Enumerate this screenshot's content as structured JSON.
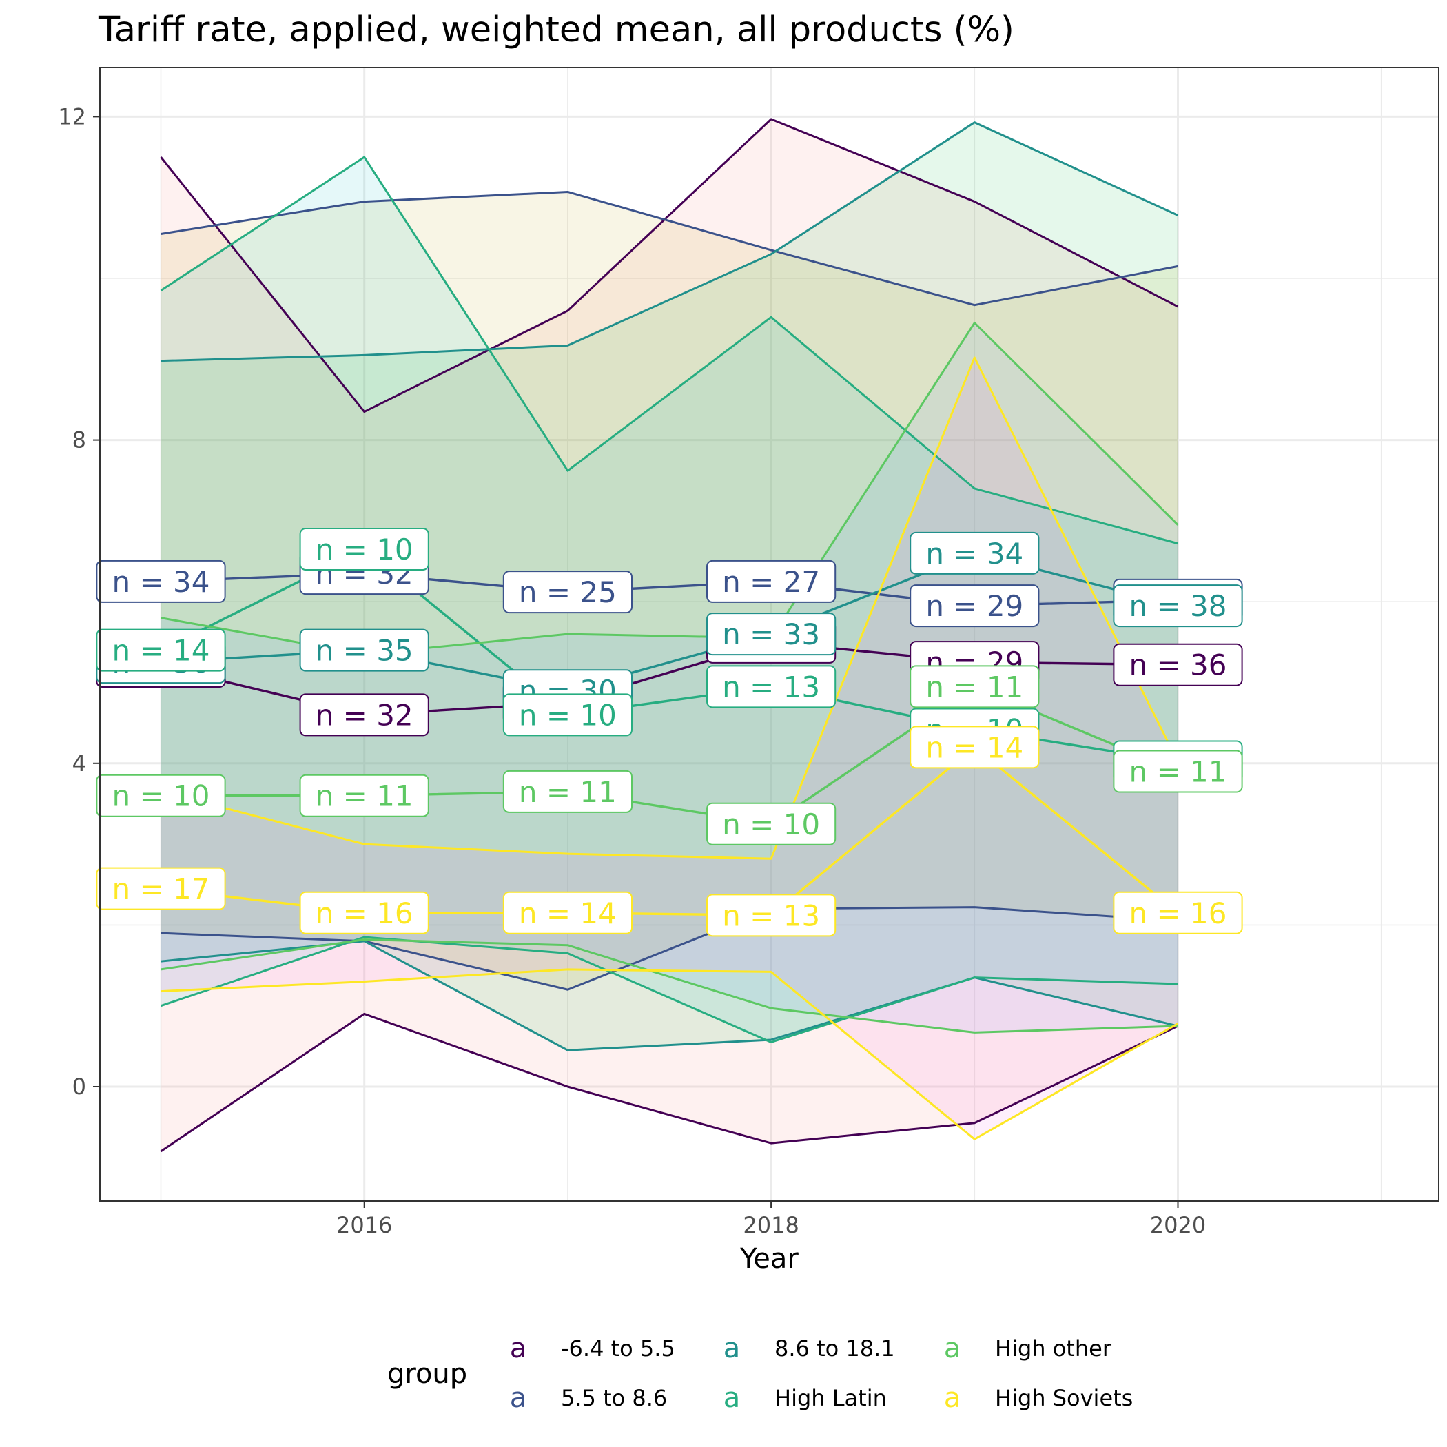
{
  "chart_data": {
    "type": "line",
    "title": "Tariff rate, applied, weighted mean, all products (%)",
    "xlabel": "Year",
    "ylabel": "",
    "xlim": [
      2014.75,
      2021.25
    ],
    "ylim": [
      -1.4,
      12.6
    ],
    "x_ticks": [
      2016,
      2018,
      2020
    ],
    "y_ticks": [
      0,
      4,
      8,
      12
    ],
    "grid": true,
    "legend": {
      "title": "group",
      "position": "bottom",
      "key_glyph": "a"
    },
    "x": [
      2015,
      2016,
      2017,
      2018,
      2019,
      2020
    ],
    "series": [
      {
        "name": "-6.4 to 5.5",
        "color": "#440154",
        "ribbon_fill": "#f8766d",
        "upper": [
          11.5,
          8.35,
          9.6,
          11.97,
          10.95,
          9.65
        ],
        "mean": [
          5.2,
          4.6,
          4.75,
          5.5,
          5.25,
          5.22
        ],
        "lower": [
          -0.8,
          0.9,
          0.0,
          -0.7,
          -0.45,
          0.75
        ],
        "n_labels": [
          "n = 36",
          "n = 32",
          "n = 30",
          "n = 30",
          "n = 29",
          "n = 36"
        ]
      },
      {
        "name": "5.5 to 8.6",
        "color": "#3b528b",
        "ribbon_fill": "#b79f00",
        "upper": [
          10.55,
          10.95,
          11.07,
          10.35,
          9.67,
          10.15
        ],
        "mean": [
          6.25,
          6.35,
          6.12,
          6.25,
          5.95,
          6.02
        ],
        "lower": [
          1.9,
          1.8,
          1.2,
          2.2,
          2.22,
          2.05
        ],
        "n_labels": [
          "n = 34",
          "n = 32",
          "n = 25",
          "n = 27",
          "n = 29",
          "n = 36"
        ]
      },
      {
        "name": "8.6 to 18.1",
        "color": "#21908c",
        "ribbon_fill": "#00ba38",
        "upper": [
          8.98,
          9.05,
          9.17,
          10.3,
          11.93,
          10.78
        ],
        "mean": [
          5.25,
          5.4,
          4.9,
          5.6,
          6.6,
          5.95
        ],
        "lower": [
          1.55,
          1.8,
          0.45,
          0.58,
          1.35,
          0.75
        ],
        "n_labels": [
          "n = 36",
          "n = 35",
          "n = 30",
          "n = 33",
          "n = 34",
          "n = 38"
        ]
      },
      {
        "name": "High Latin",
        "color": "#27ad81",
        "ribbon_fill": "#00bfc4",
        "upper": [
          9.85,
          11.5,
          7.62,
          9.52,
          7.4,
          6.72
        ],
        "mean": [
          5.4,
          6.65,
          4.6,
          4.95,
          4.42,
          4.02
        ],
        "lower": [
          1.0,
          1.85,
          1.65,
          0.55,
          1.35,
          1.27
        ],
        "n_labels": [
          "n = 14",
          "n = 10",
          "n = 10",
          "n = 13",
          "n = 10",
          "n = 12"
        ]
      },
      {
        "name": "High other",
        "color": "#5dc863",
        "ribbon_fill": "#619cff",
        "upper": [
          5.8,
          5.35,
          5.6,
          5.55,
          9.45,
          6.95
        ],
        "mean": [
          3.6,
          3.6,
          3.65,
          3.25,
          4.95,
          3.9
        ],
        "lower": [
          1.45,
          1.82,
          1.75,
          0.97,
          0.67,
          0.75
        ],
        "n_labels": [
          "n = 10",
          "n = 11",
          "n = 11",
          "n = 10",
          "n = 11",
          "n = 11"
        ]
      },
      {
        "name": "High Soviets",
        "color": "#fde725",
        "ribbon_fill": "#f564e3",
        "upper": [
          3.65,
          3.0,
          2.88,
          2.82,
          9.02,
          4.02
        ],
        "mean": [
          2.45,
          2.15,
          2.15,
          2.12,
          4.2,
          2.15
        ],
        "lower": [
          1.18,
          1.3,
          1.45,
          1.42,
          -0.65,
          0.78
        ],
        "n_labels": [
          "n = 17",
          "n = 16",
          "n = 14",
          "n = 13",
          "n = 14",
          "n = 16"
        ]
      }
    ]
  }
}
